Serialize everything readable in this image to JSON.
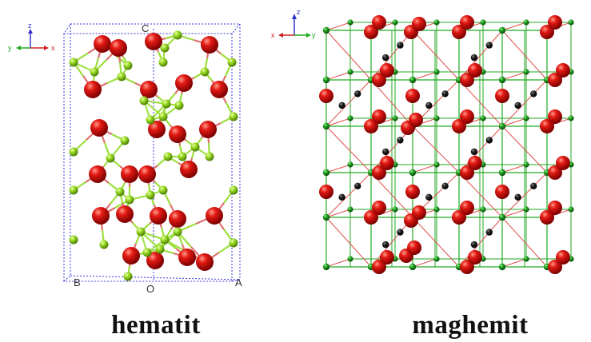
{
  "hematite": {
    "caption": "hematit",
    "cell_labels": {
      "c": "C",
      "b": "B",
      "o": "O",
      "a": "A"
    },
    "axis_labels": {
      "z": "z",
      "y": "y",
      "x": "x"
    },
    "colors": {
      "oxygen": "#cc1010",
      "iron": "#8fd81e",
      "bond_green": "#9be03a",
      "bond_red": "#e07070",
      "cell_line": "#3a3ae0"
    }
  },
  "maghemite": {
    "caption": "maghemit",
    "axis_labels": {
      "z": "z",
      "x": "x",
      "y": "y"
    },
    "colors": {
      "oxygen": "#cc1010",
      "iron": "#1c9a1c",
      "vacancy": "#111111",
      "bond_green": "#22aa22",
      "bond_red": "#e05050"
    }
  }
}
